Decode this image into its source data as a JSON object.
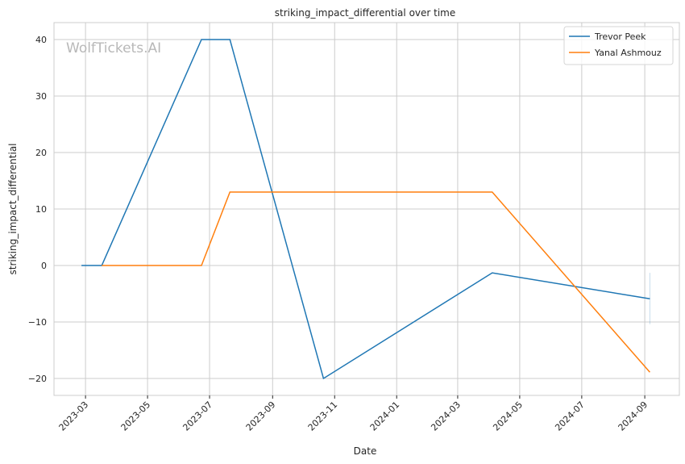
{
  "chart_data": {
    "type": "line",
    "title": "striking_impact_differential over time",
    "xlabel": "Date",
    "ylabel": "striking_impact_differential",
    "watermark": "WolfTickets.AI",
    "xlim": [
      "2023-01-29",
      "2024-10-05"
    ],
    "ylim": [
      -23,
      43
    ],
    "grid": true,
    "legend_position": "top-right",
    "xticks": [
      "2023-03",
      "2023-05",
      "2023-07",
      "2023-09",
      "2023-11",
      "2024-01",
      "2024-03",
      "2024-05",
      "2024-07",
      "2024-09"
    ],
    "yticks": [
      -20,
      -10,
      0,
      10,
      20,
      30,
      40
    ],
    "ytick_labels": [
      "−20",
      "−10",
      "0",
      "10",
      "20",
      "30",
      "40"
    ],
    "series": [
      {
        "name": "Trevor Peek",
        "color": "#1f77b4",
        "x": [
          "2023-02-25",
          "2023-03-17",
          "2023-06-23",
          "2023-07-21",
          "2023-10-21",
          "2024-04-04",
          "2024-09-06"
        ],
        "y": [
          0,
          0,
          40,
          40,
          -20,
          -1.3,
          -5.9
        ],
        "error_band": {
          "x": "2024-09-06",
          "low": -10.4,
          "high": -1.3
        }
      },
      {
        "name": "Yanal Ashmouz",
        "color": "#ff7f0e",
        "x": [
          "2023-03-17",
          "2023-06-23",
          "2023-07-21",
          "2024-04-04",
          "2024-09-06"
        ],
        "y": [
          0,
          0,
          13,
          13,
          -18.9
        ]
      }
    ]
  }
}
